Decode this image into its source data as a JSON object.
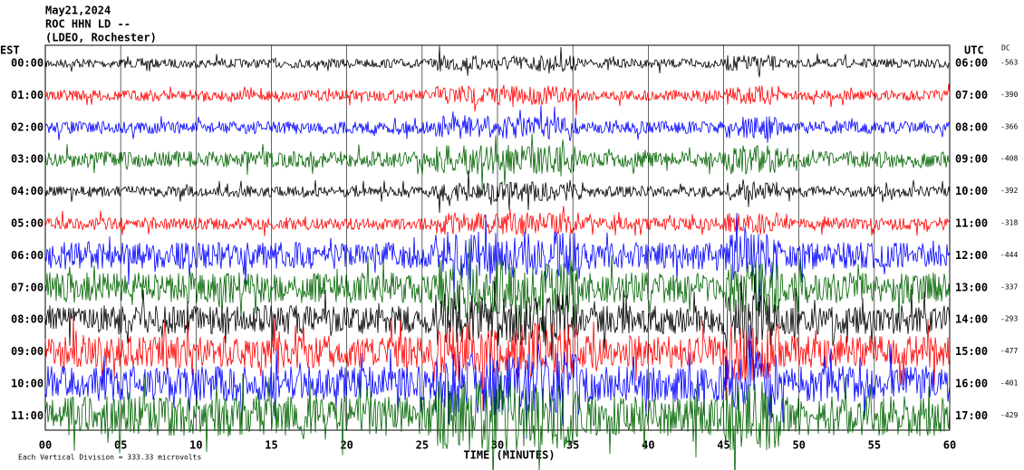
{
  "chart_data": {
    "type": "helicorder",
    "title": "May21,2024",
    "subtitle": "ROC HHN LD --",
    "station": "(LDEO, Rochester)",
    "left_axis_title": "EST",
    "right_axis_title": "UTC",
    "dc_title": "DC",
    "x_label": "TIME (MINUTES)",
    "footnote": "Each Vertical Division =  333.33 microvolts",
    "xlim": [
      0,
      60
    ],
    "xticks": [
      {
        "value": 0,
        "label": "00"
      },
      {
        "value": 5,
        "label": "05"
      },
      10,
      15,
      20,
      25,
      30,
      35,
      40,
      45,
      50,
      55,
      60
    ],
    "rows": [
      {
        "est": "00:00",
        "utc": "06:00",
        "dc": -563,
        "color": "#000000"
      },
      {
        "est": "01:00",
        "utc": "07:00",
        "dc": -390,
        "color": "#ff0000"
      },
      {
        "est": "02:00",
        "utc": "08:00",
        "dc": -366,
        "color": "#0000ff"
      },
      {
        "est": "03:00",
        "utc": "09:00",
        "dc": -408,
        "color": "#006400"
      },
      {
        "est": "04:00",
        "utc": "10:00",
        "dc": -392,
        "color": "#000000"
      },
      {
        "est": "05:00",
        "utc": "11:00",
        "dc": -318,
        "color": "#ff0000"
      },
      {
        "est": "06:00",
        "utc": "12:00",
        "dc": -444,
        "color": "#0000ff"
      },
      {
        "est": "07:00",
        "utc": "13:00",
        "dc": -337,
        "color": "#006400"
      },
      {
        "est": "08:00",
        "utc": "14:00",
        "dc": -293,
        "color": "#000000"
      },
      {
        "est": "09:00",
        "utc": "15:00",
        "dc": -477,
        "color": "#ff0000"
      },
      {
        "est": "10:00",
        "utc": "16:00",
        "dc": -401,
        "color": "#0000ff"
      },
      {
        "est": "11:00",
        "utc": "17:00",
        "dc": -429,
        "color": "#006400"
      }
    ]
  }
}
